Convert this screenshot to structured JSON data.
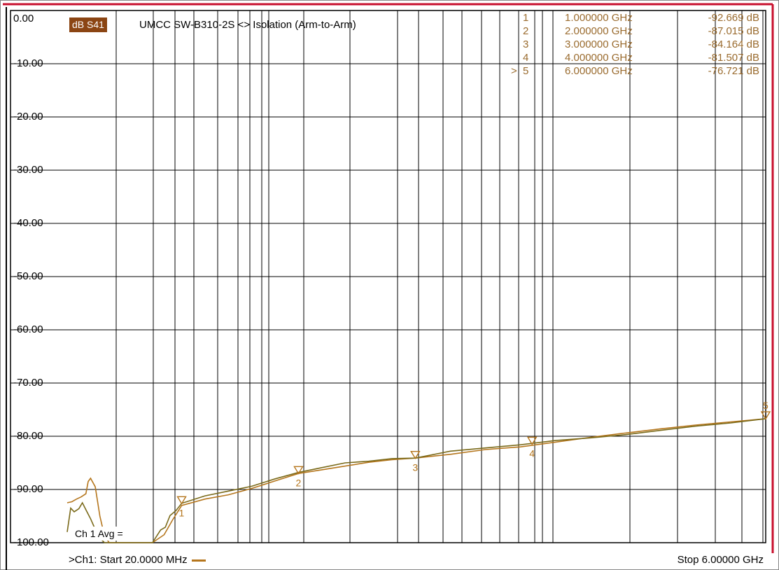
{
  "chart_data": {
    "type": "line",
    "title": "UMCC  SW-B310-2S <> Isolation (Arm-to-Arm)",
    "trace_label": "dB S41",
    "ylim": [
      -100,
      0
    ],
    "y_ticks": [
      "0.00",
      "-10.00",
      "-20.00",
      "-30.00",
      "-40.00",
      "-50.00",
      "-60.00",
      "-70.00",
      "-80.00",
      "-90.00",
      "-100.00"
    ],
    "grid": true,
    "colors": {
      "trace_main": "#b5761d",
      "trace_avg": "#7a6a1a",
      "marker_text": "#9a6b2e",
      "badge_bg": "#8b4513",
      "frame": "#c8102e",
      "grid": "#000000"
    },
    "markers": [
      {
        "id": "1",
        "arrow": "",
        "freq": "1.000000 GHz",
        "value": "-92.669 dB",
        "x_ghz": 1.0,
        "y_db": -92.669
      },
      {
        "id": "2",
        "arrow": "",
        "freq": "2.000000 GHz",
        "value": "-87.015 dB",
        "x_ghz": 2.0,
        "y_db": -87.015
      },
      {
        "id": "3",
        "arrow": "",
        "freq": "3.000000 GHz",
        "value": "-84.164 dB",
        "x_ghz": 3.0,
        "y_db": -84.164
      },
      {
        "id": "4",
        "arrow": "",
        "freq": "4.000000 GHz",
        "value": "-81.507 dB",
        "x_ghz": 4.0,
        "y_db": -81.507
      },
      {
        "id": "5",
        "arrow": ">",
        "freq": "6.000000 GHz",
        "value": "-76.721 dB",
        "x_ghz": 6.0,
        "y_db": -76.721
      }
    ],
    "series": [
      {
        "x": [
          0.02,
          0.06,
          0.1,
          0.14,
          0.18,
          0.2,
          0.22,
          0.26,
          0.3,
          0.34,
          0.38,
          0.42,
          0.48,
          0.6,
          0.75,
          0.85,
          0.92,
          1.0,
          1.2,
          1.4,
          1.6,
          1.8,
          2.0,
          2.2,
          2.4,
          2.6,
          2.8,
          3.0,
          3.3,
          3.6,
          3.9,
          4.2,
          4.5,
          4.8,
          5.1,
          5.4,
          5.7,
          6.0
        ],
        "y": [
          -92.5,
          -92.3,
          -91.8,
          -91.4,
          -90.8,
          -88.5,
          -87.9,
          -89.5,
          -95.0,
          -98.8,
          -100,
          -100,
          -100,
          -100,
          -100,
          -98.5,
          -95.8,
          -93.0,
          -91.8,
          -91.0,
          -89.8,
          -88.4,
          -87.0,
          -86.3,
          -85.6,
          -84.9,
          -84.4,
          -84.1,
          -83.4,
          -82.5,
          -82.0,
          -81.1,
          -80.2,
          -79.4,
          -78.6,
          -77.9,
          -77.3,
          -76.7
        ]
      },
      {
        "x": [
          0.02,
          0.05,
          0.08,
          0.12,
          0.15,
          0.18,
          0.22,
          0.26,
          0.3,
          0.34,
          0.38,
          0.42,
          0.5,
          0.6,
          0.75,
          0.82,
          0.86,
          0.9,
          0.95,
          1.0,
          1.2,
          1.4,
          1.6,
          1.8,
          2.0,
          2.2,
          2.4,
          2.6,
          2.8,
          3.0,
          3.3,
          3.6,
          3.9,
          4.2,
          4.5,
          4.8,
          5.1,
          5.4,
          5.7,
          6.0
        ],
        "y": [
          -98.0,
          -93.5,
          -94.2,
          -93.6,
          -92.5,
          -93.8,
          -95.5,
          -97.5,
          -99.2,
          -100,
          -100,
          -100,
          -100,
          -100,
          -100,
          -97.6,
          -97.1,
          -94.9,
          -94.0,
          -92.6,
          -91.2,
          -90.3,
          -89.4,
          -88.0,
          -86.8,
          -85.9,
          -85.0,
          -84.7,
          -84.2,
          -84.1,
          -82.8,
          -82.2,
          -81.6,
          -80.8,
          -80.3,
          -79.7,
          -78.9,
          -78.1,
          -77.5,
          -76.7
        ]
      }
    ]
  },
  "avg_label": "Ch 1 Avg =",
  "footer": {
    "start": ">Ch1: Start  20.0000 MHz",
    "stop": "Stop  6.00000 GHz"
  }
}
